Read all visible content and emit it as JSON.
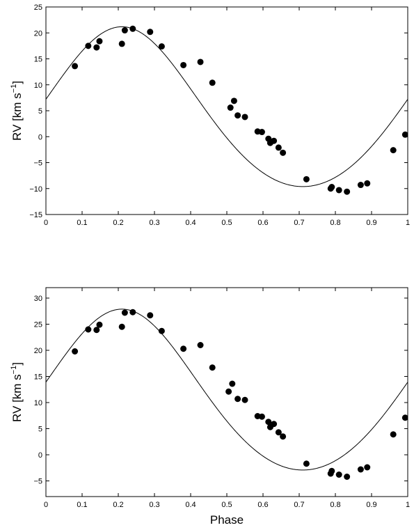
{
  "chart_data": [
    {
      "type": "scatter",
      "xlabel": "",
      "ylabel": "RV [km s",
      "ylabel_sup": "−1",
      "ylabel_close": "]",
      "xlim": [
        0,
        1
      ],
      "ylim": [
        -15,
        25
      ],
      "xticks": [
        0,
        0.1,
        0.2,
        0.3,
        0.4,
        0.5,
        0.6,
        0.7,
        0.8,
        0.9,
        1
      ],
      "xtick_labels": [
        "0",
        "0.1",
        "0.2",
        "0.3",
        "0.4",
        "0.5",
        "0.6",
        "0.7",
        "0.8",
        "0.9",
        "1"
      ],
      "yticks": [
        -15,
        -10,
        -5,
        0,
        5,
        10,
        15,
        20,
        25
      ],
      "ytick_labels": [
        "−15",
        "−10",
        "−5",
        "0",
        "5",
        "10",
        "15",
        "20",
        "25"
      ],
      "grid": false,
      "fit": {
        "gamma": 4.55,
        "K": 15.4,
        "e": 0.08,
        "omega_deg": 0,
        "T0": 0.21
      },
      "points": [
        [
          0.08,
          13.6
        ],
        [
          0.117,
          17.5
        ],
        [
          0.14,
          17.2
        ],
        [
          0.148,
          18.4
        ],
        [
          0.21,
          17.9
        ],
        [
          0.218,
          20.5
        ],
        [
          0.24,
          20.8
        ],
        [
          0.288,
          20.2
        ],
        [
          0.32,
          17.4
        ],
        [
          0.38,
          13.8
        ],
        [
          0.427,
          14.4
        ],
        [
          0.46,
          10.4
        ],
        [
          0.51,
          5.6
        ],
        [
          0.52,
          6.9
        ],
        [
          0.53,
          4.1
        ],
        [
          0.55,
          3.8
        ],
        [
          0.585,
          1.0
        ],
        [
          0.597,
          0.9
        ],
        [
          0.615,
          -0.4
        ],
        [
          0.62,
          -1.2
        ],
        [
          0.63,
          -0.8
        ],
        [
          0.643,
          -2.1
        ],
        [
          0.655,
          -3.1
        ],
        [
          0.72,
          -8.2
        ],
        [
          0.787,
          -10.0
        ],
        [
          0.79,
          -9.7
        ],
        [
          0.81,
          -10.3
        ],
        [
          0.832,
          -10.6
        ],
        [
          0.87,
          -9.3
        ],
        [
          0.888,
          -9.0
        ],
        [
          0.96,
          -2.6
        ],
        [
          0.993,
          0.4
        ]
      ]
    },
    {
      "type": "scatter",
      "xlabel": "Phase",
      "ylabel": "RV [km s",
      "ylabel_sup": "−1",
      "ylabel_close": "]",
      "xlim": [
        0,
        1
      ],
      "ylim": [
        -8,
        32
      ],
      "xticks": [
        0,
        0.1,
        0.2,
        0.3,
        0.4,
        0.5,
        0.6,
        0.7,
        0.8,
        0.9,
        1
      ],
      "xtick_labels": [
        "0",
        "0.1",
        "0.2",
        "0.3",
        "0.4",
        "0.5",
        "0.6",
        "0.7",
        "0.8",
        "0.9",
        "1"
      ],
      "yticks": [
        -5,
        0,
        5,
        10,
        15,
        20,
        25,
        30
      ],
      "ytick_labels": [
        "−5",
        "0",
        "5",
        "10",
        "15",
        "20",
        "25",
        "30"
      ],
      "grid": false,
      "fit": {
        "gamma": 11.25,
        "K": 15.4,
        "e": 0.08,
        "omega_deg": 0,
        "T0": 0.21
      },
      "points": [
        [
          0.08,
          19.8
        ],
        [
          0.117,
          24.0
        ],
        [
          0.14,
          23.9
        ],
        [
          0.148,
          24.9
        ],
        [
          0.21,
          24.5
        ],
        [
          0.218,
          27.2
        ],
        [
          0.24,
          27.3
        ],
        [
          0.288,
          26.7
        ],
        [
          0.32,
          23.7
        ],
        [
          0.38,
          20.3
        ],
        [
          0.427,
          21.0
        ],
        [
          0.46,
          16.7
        ],
        [
          0.505,
          12.1
        ],
        [
          0.515,
          13.6
        ],
        [
          0.53,
          10.7
        ],
        [
          0.55,
          10.5
        ],
        [
          0.585,
          7.4
        ],
        [
          0.597,
          7.3
        ],
        [
          0.615,
          6.3
        ],
        [
          0.62,
          5.3
        ],
        [
          0.63,
          5.9
        ],
        [
          0.643,
          4.3
        ],
        [
          0.655,
          3.5
        ],
        [
          0.72,
          -1.7
        ],
        [
          0.787,
          -3.6
        ],
        [
          0.79,
          -3.1
        ],
        [
          0.81,
          -3.8
        ],
        [
          0.832,
          -4.2
        ],
        [
          0.87,
          -2.8
        ],
        [
          0.888,
          -2.4
        ],
        [
          0.96,
          3.9
        ],
        [
          0.993,
          7.1
        ]
      ]
    }
  ]
}
